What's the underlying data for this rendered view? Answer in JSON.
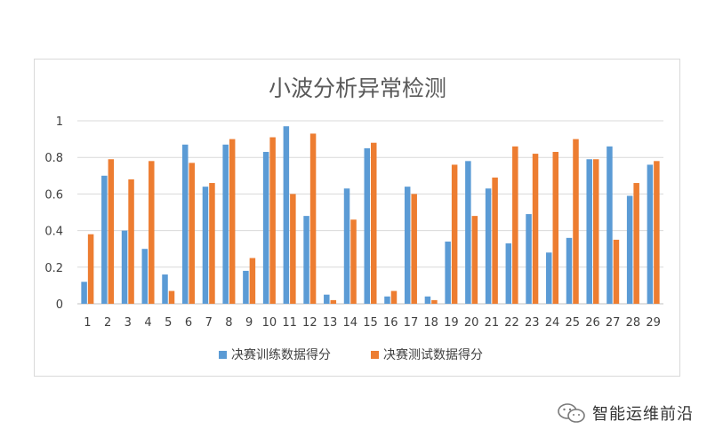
{
  "chart_data": {
    "type": "bar",
    "title": "小波分析异常检测",
    "xlabel": "",
    "ylabel": "",
    "categories": [
      "1",
      "2",
      "3",
      "4",
      "5",
      "6",
      "7",
      "8",
      "9",
      "10",
      "11",
      "12",
      "13",
      "14",
      "15",
      "16",
      "17",
      "18",
      "19",
      "20",
      "21",
      "22",
      "23",
      "24",
      "25",
      "26",
      "27",
      "28",
      "29"
    ],
    "series": [
      {
        "name": "决赛训练数据得分",
        "color": "#5b9bd5",
        "values": [
          0.12,
          0.7,
          0.4,
          0.3,
          0.16,
          0.87,
          0.64,
          0.87,
          0.18,
          0.83,
          0.97,
          0.48,
          0.05,
          0.63,
          0.85,
          0.04,
          0.64,
          0.04,
          0.34,
          0.78,
          0.63,
          0.33,
          0.49,
          0.28,
          0.36,
          0.79,
          0.86,
          0.59,
          0.76
        ]
      },
      {
        "name": "决赛测试数据得分",
        "color": "#ed7d31",
        "values": [
          0.38,
          0.79,
          0.68,
          0.78,
          0.07,
          0.77,
          0.66,
          0.9,
          0.25,
          0.91,
          0.6,
          0.93,
          0.02,
          0.46,
          0.88,
          0.07,
          0.6,
          0.02,
          0.76,
          0.48,
          0.69,
          0.86,
          0.82,
          0.83,
          0.9,
          0.79,
          0.35,
          0.66,
          0.78
        ]
      }
    ],
    "ylim": [
      0,
      1
    ],
    "yticks": [
      "0",
      "0.2",
      "0.4",
      "0.6",
      "0.8",
      "1"
    ],
    "grid": true,
    "legend_position": "bottom"
  },
  "watermark": {
    "text": "智能运维前沿",
    "icon": "wechat-icon"
  }
}
